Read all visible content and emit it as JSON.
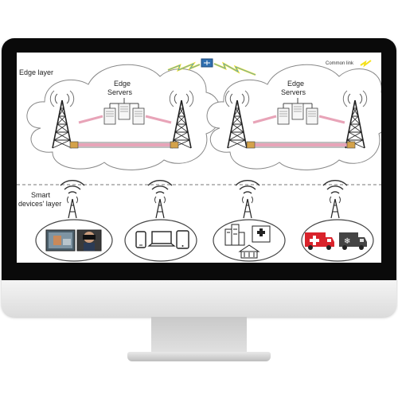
{
  "diagram": {
    "edge_layer_label": "Edge layer",
    "edge_servers_label_1": "Edge",
    "edge_servers_label_2": "Servers",
    "smart_devices_label_1": "Smart",
    "smart_devices_label_2": "devices' layer",
    "legend_label": "Common link"
  },
  "colors": {
    "link_yellow": "#f5e11a",
    "link_blue": "#4a9fd6",
    "ambulance_red": "#d9232b",
    "truck_gray": "#444444",
    "router_blue": "#2f6fb0",
    "laser_pink": "#e8a4b8"
  },
  "icons": [
    "tower-icon",
    "server-icon",
    "wifi-icon",
    "tablet-icon",
    "laptop-icon",
    "phone-icon",
    "city-icon",
    "ambulance-icon",
    "truck-icon",
    "router-icon"
  ]
}
